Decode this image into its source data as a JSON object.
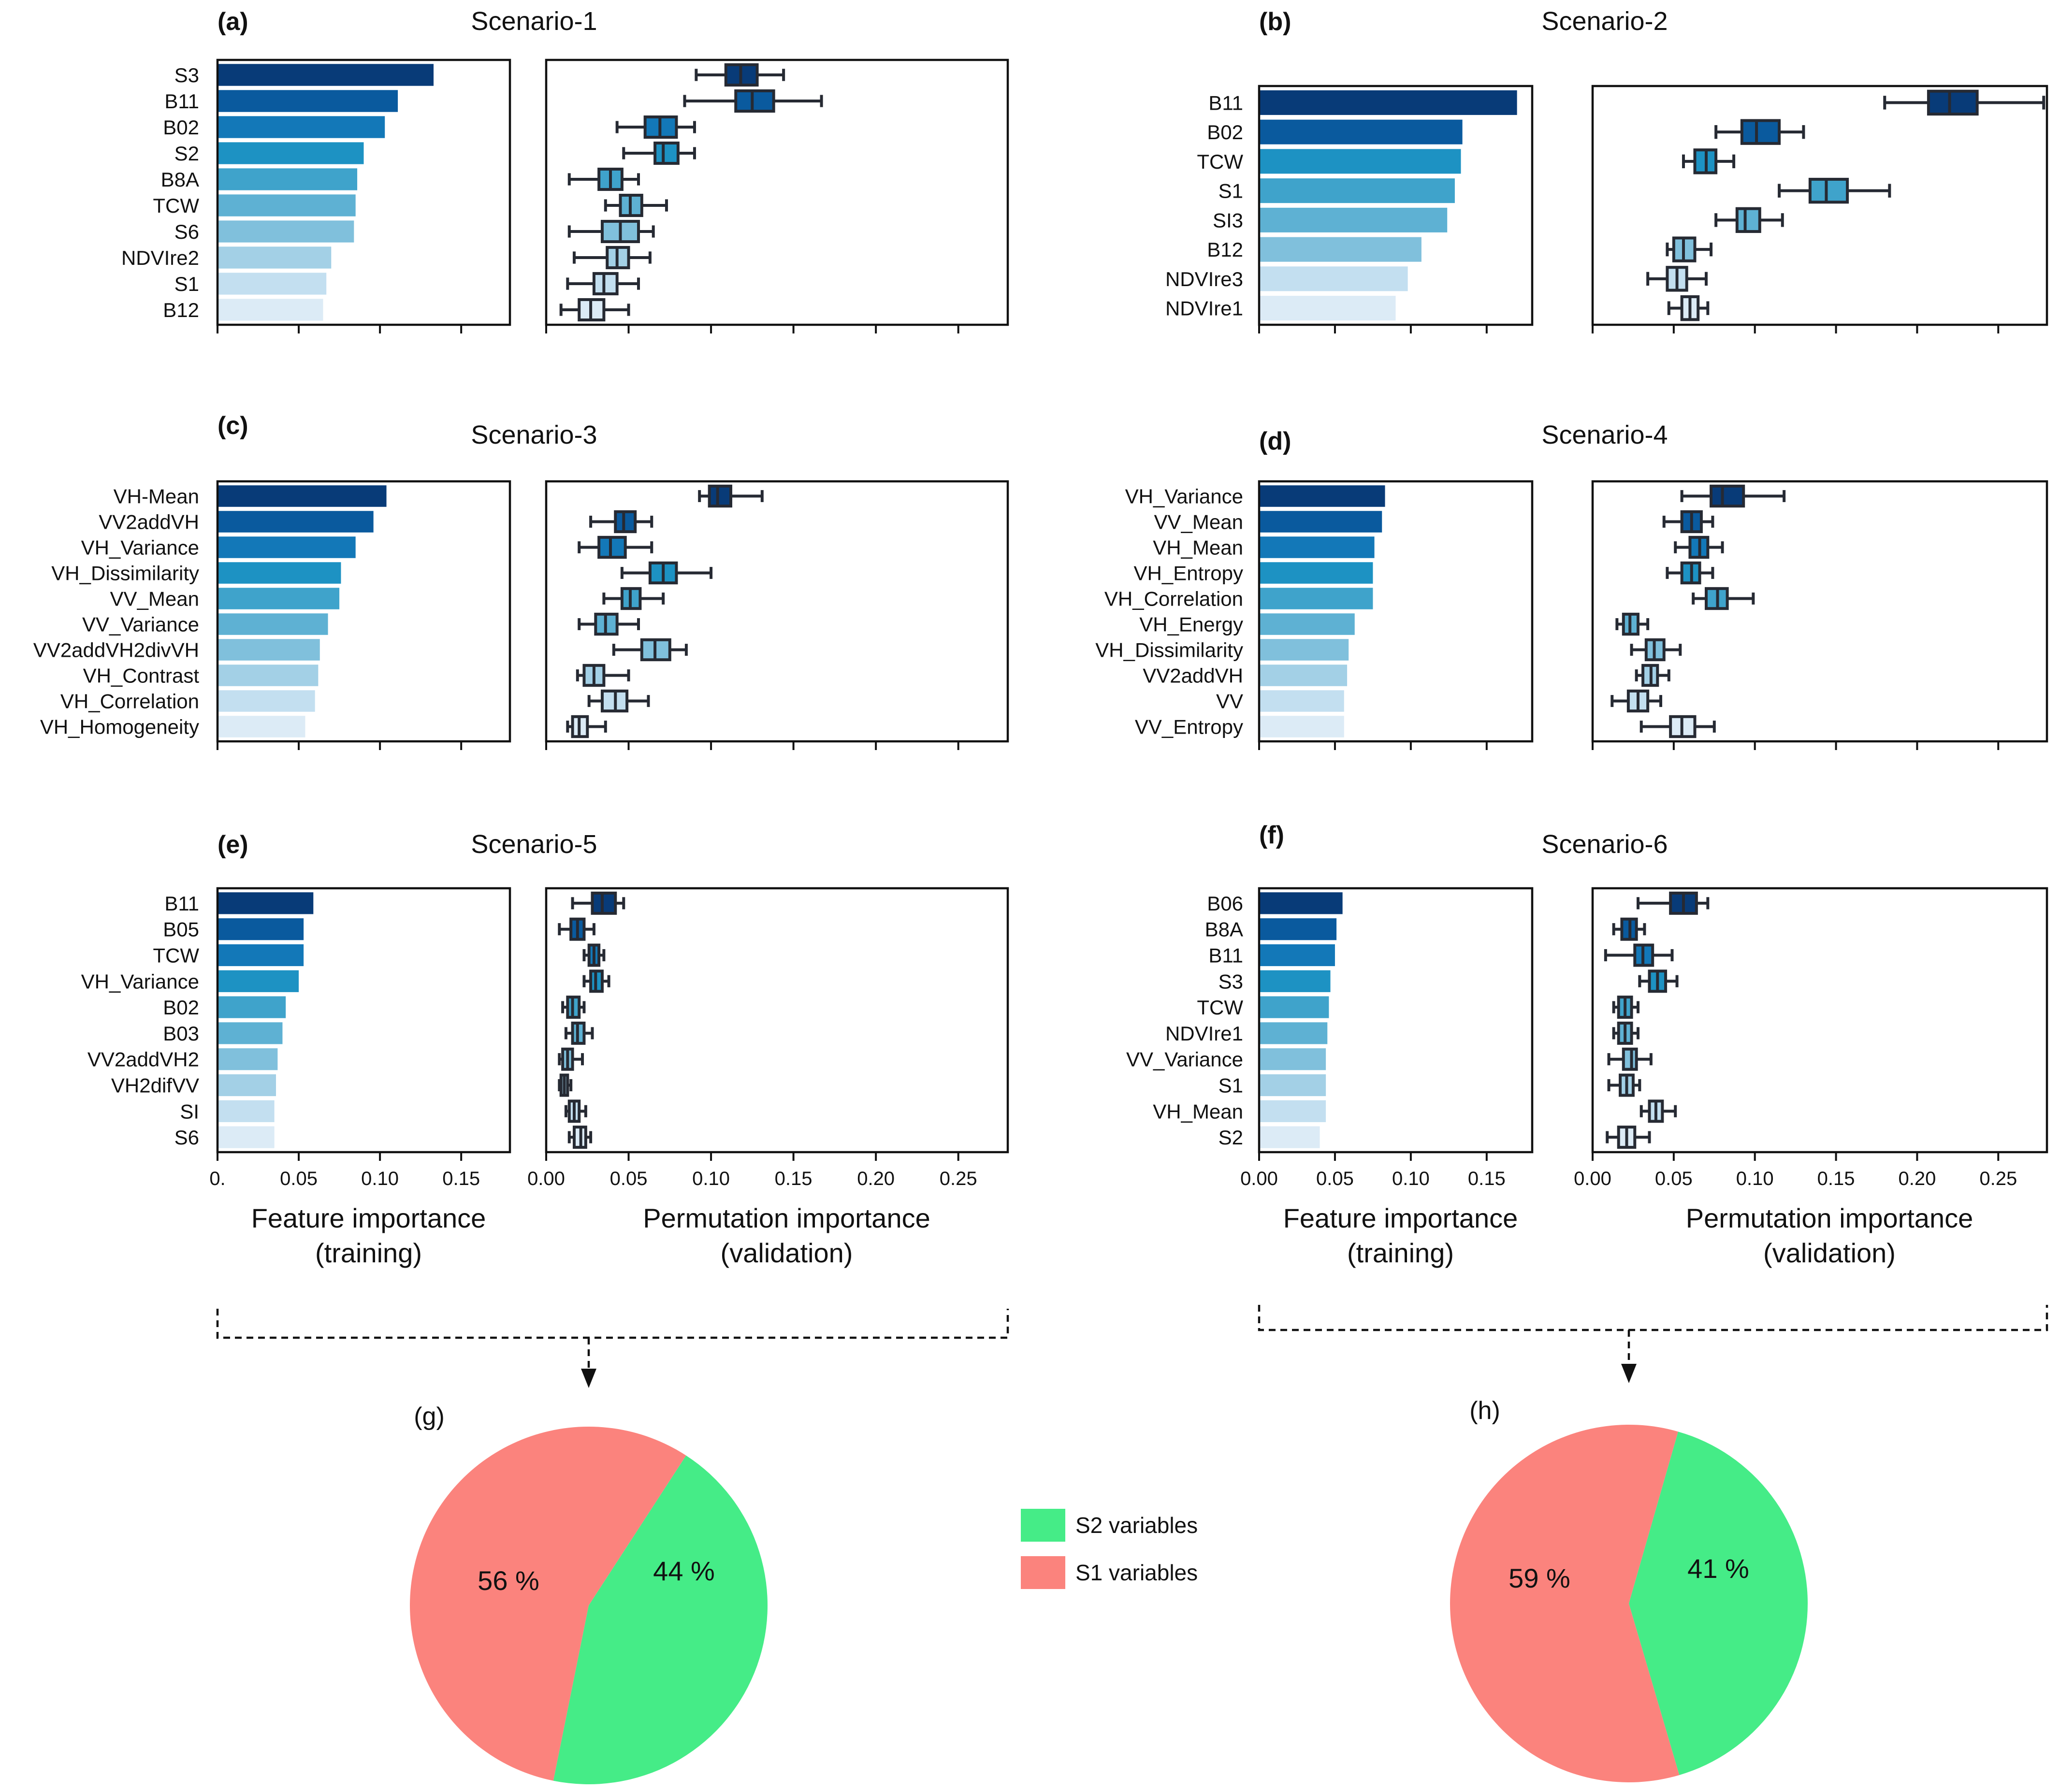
{
  "figure": {
    "x_ticks_feature_long": [
      "0.00",
      "0.05",
      "0.10",
      "0.15"
    ],
    "x_ticks_feature_short": [
      "0.",
      "0.05",
      "0.10",
      "0.15"
    ],
    "x_ticks_perm": [
      "0.00",
      "0.05",
      "0.10",
      "0.15",
      "0.20",
      "0.25"
    ],
    "xlabel_feature": [
      "Feature importance",
      "(training)"
    ],
    "xlabel_perm": [
      "Permutation importance",
      "(validation)"
    ]
  },
  "colors": {
    "bar_scale": [
      "#083b78",
      "#0a5a9e",
      "#1378b8",
      "#1d92c3",
      "#3fa3cb",
      "#5eb1d3",
      "#80c0dc",
      "#a3d0e6",
      "#c3dff0",
      "#dcebf6"
    ],
    "s2": "#45ec87",
    "s1": "#fb837d",
    "box_edge": "#262a33",
    "whisker": "#262a33"
  },
  "chart_data": [
    {
      "panel": "(a)",
      "type": "bar",
      "title": "Scenario-1",
      "xlim": [
        0,
        0.18
      ],
      "xlabel": "Feature importance (training)",
      "categories": [
        "S3",
        "B11",
        "B02",
        "S2",
        "B8A",
        "TCW",
        "S6",
        "NDVIre2",
        "S1",
        "B12"
      ],
      "values": [
        0.133,
        0.111,
        0.103,
        0.09,
        0.086,
        0.085,
        0.084,
        0.07,
        0.067,
        0.065
      ]
    },
    {
      "panel": "(a)",
      "type": "boxplot",
      "xlim": [
        0,
        0.28
      ],
      "xlabel": "Permutation importance (validation)",
      "categories": [
        "S3",
        "B11",
        "B02",
        "S2",
        "B8A",
        "TCW",
        "S6",
        "NDVIre2",
        "S1",
        "B12"
      ],
      "boxes": [
        {
          "min": 0.091,
          "q1": 0.109,
          "median": 0.118,
          "q3": 0.128,
          "max": 0.144
        },
        {
          "min": 0.084,
          "q1": 0.115,
          "median": 0.125,
          "q3": 0.138,
          "max": 0.167
        },
        {
          "min": 0.043,
          "q1": 0.06,
          "median": 0.069,
          "q3": 0.079,
          "max": 0.09
        },
        {
          "min": 0.047,
          "q1": 0.066,
          "median": 0.071,
          "q3": 0.08,
          "max": 0.09
        },
        {
          "min": 0.014,
          "q1": 0.032,
          "median": 0.039,
          "q3": 0.046,
          "max": 0.056
        },
        {
          "min": 0.036,
          "q1": 0.045,
          "median": 0.051,
          "q3": 0.058,
          "max": 0.073
        },
        {
          "min": 0.014,
          "q1": 0.034,
          "median": 0.045,
          "q3": 0.056,
          "max": 0.065
        },
        {
          "min": 0.017,
          "q1": 0.037,
          "median": 0.043,
          "q3": 0.05,
          "max": 0.063
        },
        {
          "min": 0.013,
          "q1": 0.029,
          "median": 0.035,
          "q3": 0.043,
          "max": 0.056
        },
        {
          "min": 0.009,
          "q1": 0.02,
          "median": 0.027,
          "q3": 0.035,
          "max": 0.05
        }
      ]
    },
    {
      "panel": "(b)",
      "type": "bar",
      "title": "Scenario-2",
      "xlim": [
        0,
        0.18
      ],
      "xlabel": "Feature importance (training)",
      "categories": [
        "B11",
        "B02",
        "TCW",
        "S1",
        "SI3",
        "B12",
        "NDVIre3",
        "NDVIre1"
      ],
      "values": [
        0.17,
        0.134,
        0.133,
        0.129,
        0.124,
        0.107,
        0.098,
        0.09
      ]
    },
    {
      "panel": "(b)",
      "type": "boxplot",
      "xlim": [
        0,
        0.28
      ],
      "xlabel": "Permutation importance (validation)",
      "categories": [
        "B11",
        "B02",
        "TCW",
        "S1",
        "SI3",
        "B12",
        "NDVIre3",
        "NDVIre1"
      ],
      "boxes": [
        {
          "min": 0.18,
          "q1": 0.207,
          "median": 0.22,
          "q3": 0.237,
          "max": 0.278
        },
        {
          "min": 0.076,
          "q1": 0.092,
          "median": 0.101,
          "q3": 0.115,
          "max": 0.13
        },
        {
          "min": 0.056,
          "q1": 0.063,
          "median": 0.07,
          "q3": 0.076,
          "max": 0.087
        },
        {
          "min": 0.115,
          "q1": 0.134,
          "median": 0.144,
          "q3": 0.157,
          "max": 0.183
        },
        {
          "min": 0.076,
          "q1": 0.089,
          "median": 0.094,
          "q3": 0.103,
          "max": 0.117
        },
        {
          "min": 0.046,
          "q1": 0.05,
          "median": 0.056,
          "q3": 0.063,
          "max": 0.073
        },
        {
          "min": 0.034,
          "q1": 0.046,
          "median": 0.052,
          "q3": 0.058,
          "max": 0.07
        },
        {
          "min": 0.047,
          "q1": 0.055,
          "median": 0.06,
          "q3": 0.065,
          "max": 0.071
        }
      ]
    },
    {
      "panel": "(c)",
      "type": "bar",
      "title": "Scenario-3",
      "xlim": [
        0,
        0.18
      ],
      "xlabel": "Feature importance (training)",
      "categories": [
        "VH-Mean",
        "VV2addVH",
        "VH_Variance",
        "VH_Dissimilarity",
        "VV_Mean",
        "VV_Variance",
        "VV2addVH2divVH",
        "VH_Contrast",
        "VH_Correlation",
        "VH_Homogeneity"
      ],
      "values": [
        0.104,
        0.096,
        0.085,
        0.076,
        0.075,
        0.068,
        0.063,
        0.062,
        0.06,
        0.054
      ]
    },
    {
      "panel": "(c)",
      "type": "boxplot",
      "xlim": [
        0,
        0.28
      ],
      "xlabel": "Permutation importance (validation)",
      "categories": [
        "VH-Mean",
        "VV2addVH",
        "VH_Variance",
        "VH_Dissimilarity",
        "VV_Mean",
        "VV_Variance",
        "VV2addVH2divVH",
        "VH_Contrast",
        "VH_Correlation",
        "VH_Homogeneity"
      ],
      "boxes": [
        {
          "min": 0.093,
          "q1": 0.099,
          "median": 0.104,
          "q3": 0.112,
          "max": 0.131
        },
        {
          "min": 0.027,
          "q1": 0.042,
          "median": 0.047,
          "q3": 0.054,
          "max": 0.064
        },
        {
          "min": 0.02,
          "q1": 0.032,
          "median": 0.039,
          "q3": 0.048,
          "max": 0.064
        },
        {
          "min": 0.046,
          "q1": 0.063,
          "median": 0.071,
          "q3": 0.079,
          "max": 0.1
        },
        {
          "min": 0.035,
          "q1": 0.046,
          "median": 0.051,
          "q3": 0.057,
          "max": 0.071
        },
        {
          "min": 0.02,
          "q1": 0.03,
          "median": 0.036,
          "q3": 0.043,
          "max": 0.056
        },
        {
          "min": 0.041,
          "q1": 0.058,
          "median": 0.066,
          "q3": 0.075,
          "max": 0.085
        },
        {
          "min": 0.019,
          "q1": 0.023,
          "median": 0.029,
          "q3": 0.035,
          "max": 0.05
        },
        {
          "min": 0.026,
          "q1": 0.034,
          "median": 0.042,
          "q3": 0.049,
          "max": 0.062
        },
        {
          "min": 0.013,
          "q1": 0.016,
          "median": 0.02,
          "q3": 0.025,
          "max": 0.036
        }
      ]
    },
    {
      "panel": "(d)",
      "type": "bar",
      "title": "Scenario-4",
      "xlim": [
        0,
        0.18
      ],
      "xlabel": "Feature importance (training)",
      "categories": [
        "VH_Variance",
        "VV_Mean",
        "VH_Mean",
        "VH_Entropy",
        "VH_Correlation",
        "VH_Energy",
        "VH_Dissimilarity",
        "VV2addVH",
        "VV",
        "VV_Entropy"
      ],
      "values": [
        0.083,
        0.081,
        0.076,
        0.075,
        0.075,
        0.063,
        0.059,
        0.058,
        0.056,
        0.056
      ]
    },
    {
      "panel": "(d)",
      "type": "boxplot",
      "xlim": [
        0,
        0.28
      ],
      "xlabel": "Permutation importance (validation)",
      "categories": [
        "VH_Variance",
        "VV_Mean",
        "VH_Mean",
        "VH_Entropy",
        "VH_Correlation",
        "VH_Energy",
        "VH_Dissimilarity",
        "VV2addVH",
        "VV",
        "VV_Entropy"
      ],
      "boxes": [
        {
          "min": 0.055,
          "q1": 0.073,
          "median": 0.08,
          "q3": 0.093,
          "max": 0.118
        },
        {
          "min": 0.044,
          "q1": 0.055,
          "median": 0.061,
          "q3": 0.067,
          "max": 0.074
        },
        {
          "min": 0.051,
          "q1": 0.06,
          "median": 0.066,
          "q3": 0.071,
          "max": 0.08
        },
        {
          "min": 0.046,
          "q1": 0.055,
          "median": 0.061,
          "q3": 0.066,
          "max": 0.074
        },
        {
          "min": 0.062,
          "q1": 0.07,
          "median": 0.077,
          "q3": 0.083,
          "max": 0.099
        },
        {
          "min": 0.015,
          "q1": 0.019,
          "median": 0.023,
          "q3": 0.028,
          "max": 0.034
        },
        {
          "min": 0.024,
          "q1": 0.033,
          "median": 0.038,
          "q3": 0.044,
          "max": 0.054
        },
        {
          "min": 0.027,
          "q1": 0.031,
          "median": 0.036,
          "q3": 0.04,
          "max": 0.047
        },
        {
          "min": 0.012,
          "q1": 0.022,
          "median": 0.028,
          "q3": 0.034,
          "max": 0.042
        },
        {
          "min": 0.03,
          "q1": 0.048,
          "median": 0.055,
          "q3": 0.063,
          "max": 0.075
        }
      ]
    },
    {
      "panel": "(e)",
      "type": "bar",
      "title": "Scenario-5",
      "xlim": [
        0,
        0.18
      ],
      "xlabel": "Feature importance (training)",
      "categories": [
        "B11",
        "B05",
        "TCW",
        "VH_Variance",
        "B02",
        "B03",
        "VV2addVH2",
        "VH2difVV",
        "SI",
        "S6"
      ],
      "values": [
        0.059,
        0.053,
        0.053,
        0.05,
        0.042,
        0.04,
        0.037,
        0.036,
        0.035,
        0.035
      ]
    },
    {
      "panel": "(e)",
      "type": "boxplot",
      "xlim": [
        0,
        0.28
      ],
      "xlabel": "Permutation importance (validation)",
      "categories": [
        "B11",
        "B05",
        "TCW",
        "VH_Variance",
        "B02",
        "B03",
        "VV2addVH2",
        "VH2difVV",
        "SI",
        "S6"
      ],
      "boxes": [
        {
          "min": 0.016,
          "q1": 0.028,
          "median": 0.034,
          "q3": 0.042,
          "max": 0.047
        },
        {
          "min": 0.008,
          "q1": 0.015,
          "median": 0.019,
          "q3": 0.023,
          "max": 0.029
        },
        {
          "min": 0.023,
          "q1": 0.026,
          "median": 0.029,
          "q3": 0.032,
          "max": 0.035
        },
        {
          "min": 0.023,
          "q1": 0.027,
          "median": 0.03,
          "q3": 0.034,
          "max": 0.038
        },
        {
          "min": 0.01,
          "q1": 0.013,
          "median": 0.016,
          "q3": 0.02,
          "max": 0.023
        },
        {
          "min": 0.012,
          "q1": 0.016,
          "median": 0.019,
          "q3": 0.023,
          "max": 0.028
        },
        {
          "min": 0.008,
          "q1": 0.01,
          "median": 0.013,
          "q3": 0.016,
          "max": 0.022
        },
        {
          "min": 0.008,
          "q1": 0.009,
          "median": 0.011,
          "q3": 0.013,
          "max": 0.015
        },
        {
          "min": 0.012,
          "q1": 0.014,
          "median": 0.017,
          "q3": 0.02,
          "max": 0.024
        },
        {
          "min": 0.014,
          "q1": 0.017,
          "median": 0.021,
          "q3": 0.024,
          "max": 0.027
        }
      ]
    },
    {
      "panel": "(f)",
      "type": "bar",
      "title": "Scenario-6",
      "xlim": [
        0,
        0.18
      ],
      "xlabel": "Feature importance (training)",
      "categories": [
        "B06",
        "B8A",
        "B11",
        "S3",
        "TCW",
        "NDVIre1",
        "VV_Variance",
        "S1",
        "VH_Mean",
        "S2"
      ],
      "values": [
        0.055,
        0.051,
        0.05,
        0.047,
        0.046,
        0.045,
        0.044,
        0.044,
        0.044,
        0.04
      ]
    },
    {
      "panel": "(f)",
      "type": "boxplot",
      "xlim": [
        0,
        0.28
      ],
      "xlabel": "Permutation importance (validation)",
      "categories": [
        "B06",
        "B8A",
        "B11",
        "S3",
        "TCW",
        "NDVIre1",
        "VV_Variance",
        "S1",
        "VH_Mean",
        "S2"
      ],
      "boxes": [
        {
          "min": 0.028,
          "q1": 0.048,
          "median": 0.056,
          "q3": 0.064,
          "max": 0.071
        },
        {
          "min": 0.013,
          "q1": 0.018,
          "median": 0.023,
          "q3": 0.027,
          "max": 0.032
        },
        {
          "min": 0.008,
          "q1": 0.026,
          "median": 0.031,
          "q3": 0.037,
          "max": 0.049
        },
        {
          "min": 0.029,
          "q1": 0.035,
          "median": 0.04,
          "q3": 0.045,
          "max": 0.052
        },
        {
          "min": 0.013,
          "q1": 0.016,
          "median": 0.02,
          "q3": 0.024,
          "max": 0.028
        },
        {
          "min": 0.013,
          "q1": 0.016,
          "median": 0.02,
          "q3": 0.024,
          "max": 0.028
        },
        {
          "min": 0.01,
          "q1": 0.019,
          "median": 0.024,
          "q3": 0.027,
          "max": 0.036
        },
        {
          "min": 0.01,
          "q1": 0.017,
          "median": 0.021,
          "q3": 0.025,
          "max": 0.029
        },
        {
          "min": 0.03,
          "q1": 0.035,
          "median": 0.039,
          "q3": 0.043,
          "max": 0.051
        },
        {
          "min": 0.009,
          "q1": 0.016,
          "median": 0.021,
          "q3": 0.026,
          "max": 0.035
        }
      ]
    },
    {
      "panel": "(g)",
      "type": "pie",
      "slices": [
        {
          "label": "S1 variables",
          "value": 56,
          "text": "56 %"
        },
        {
          "label": "S2 variables",
          "value": 44,
          "text": "44 %"
        }
      ]
    },
    {
      "panel": "(h)",
      "type": "pie",
      "slices": [
        {
          "label": "S1 variables",
          "value": 59,
          "text": "59 %"
        },
        {
          "label": "S2 variables",
          "value": 41,
          "text": "41 %"
        }
      ]
    }
  ],
  "legend": {
    "items": [
      {
        "label": "S2 variables",
        "color_key": "s2"
      },
      {
        "label": "S1 variables",
        "color_key": "s1"
      }
    ]
  }
}
